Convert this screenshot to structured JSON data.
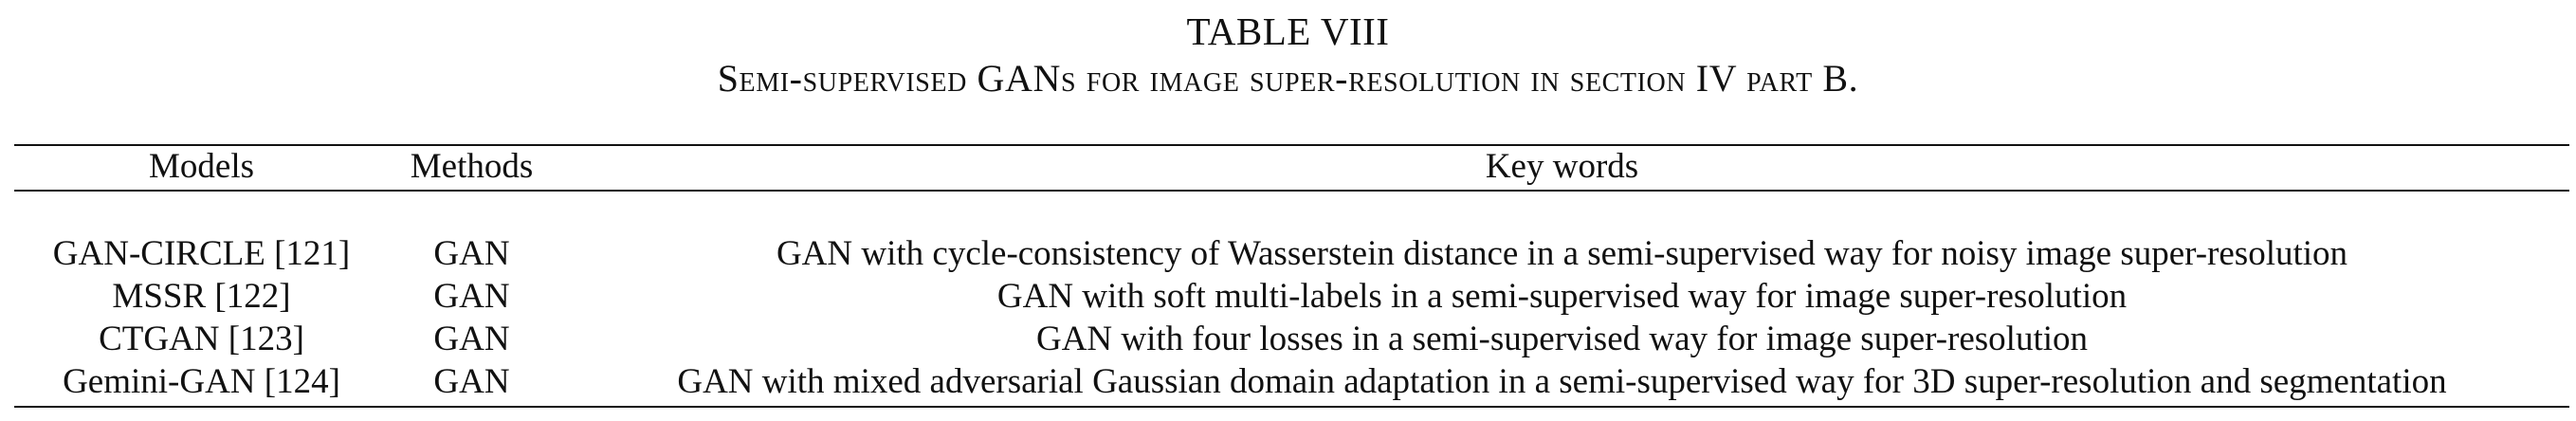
{
  "caption": {
    "label": "TABLE VIII",
    "title": "Semi-supervised GANs for image super-resolution in section IV part B."
  },
  "table": {
    "headers": {
      "models": "Models",
      "methods": "Methods",
      "key_words": "Key words"
    },
    "rows": [
      {
        "model": "GAN-CIRCLE [121]",
        "method": "GAN",
        "key_words": "GAN with cycle-consistency of Wasserstein distance in a semi-supervised way for noisy image super-resolution"
      },
      {
        "model": "MSSR [122]",
        "method": "GAN",
        "key_words": "GAN with soft multi-labels in a semi-supervised way for image super-resolution"
      },
      {
        "model": "CTGAN [123]",
        "method": "GAN",
        "key_words": "GAN with four losses in a semi-supervised way for image super-resolution"
      },
      {
        "model": "Gemini-GAN [124]",
        "method": "GAN",
        "key_words": "GAN with mixed adversarial Gaussian domain adaptation in a semi-supervised way for 3D super-resolution and segmentation"
      }
    ]
  }
}
